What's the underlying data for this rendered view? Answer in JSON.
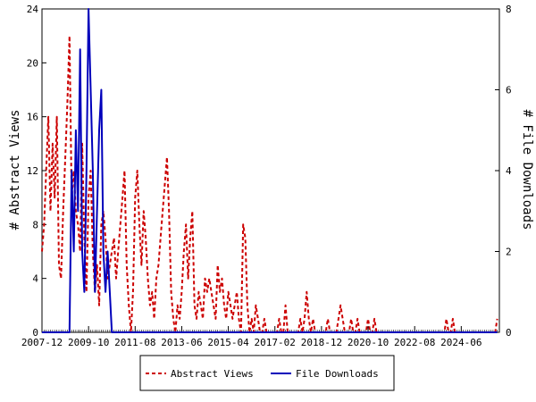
{
  "chart_data": {
    "type": "line",
    "title": "",
    "xlabel": "",
    "ylabel_left": "# Abstract Views",
    "ylabel_right": "# File Downloads",
    "x_range": [
      "2007-12",
      "2025-12"
    ],
    "x_tick_labels": [
      "2007-12",
      "2009-10",
      "2011-08",
      "2013-06",
      "2015-04",
      "2017-02",
      "2018-12",
      "2020-10",
      "2022-08",
      "2024-06"
    ],
    "ylim_left": [
      0,
      24
    ],
    "yticks_left": [
      0,
      4,
      8,
      12,
      16,
      20,
      24
    ],
    "ylim_right": [
      0,
      8
    ],
    "yticks_right": [
      0,
      2,
      4,
      6,
      8
    ],
    "grid": false,
    "legend_position": "bottom-center",
    "series": [
      {
        "name": "Abstract Views",
        "axis": "left",
        "color": "#cc0000",
        "style": "dashed",
        "points": [
          [
            "2007-12",
            6
          ],
          [
            "2008-01",
            8
          ],
          [
            "2008-02",
            12
          ],
          [
            "2008-03",
            16
          ],
          [
            "2008-04",
            9
          ],
          [
            "2008-05",
            14
          ],
          [
            "2008-06",
            10
          ],
          [
            "2008-07",
            16
          ],
          [
            "2008-08",
            5
          ],
          [
            "2008-09",
            4
          ],
          [
            "2008-10",
            9
          ],
          [
            "2008-11",
            13
          ],
          [
            "2008-12",
            17
          ],
          [
            "2009-01",
            22
          ],
          [
            "2009-02",
            10
          ],
          [
            "2009-03",
            12
          ],
          [
            "2009-04",
            9
          ],
          [
            "2009-05",
            8
          ],
          [
            "2009-06",
            6
          ],
          [
            "2009-07",
            14
          ],
          [
            "2009-08",
            7
          ],
          [
            "2009-09",
            3
          ],
          [
            "2009-10",
            10
          ],
          [
            "2009-11",
            12
          ],
          [
            "2009-12",
            6
          ],
          [
            "2010-01",
            3
          ],
          [
            "2010-02",
            5
          ],
          [
            "2010-03",
            2
          ],
          [
            "2010-04",
            8
          ],
          [
            "2010-05",
            9
          ],
          [
            "2010-06",
            7
          ],
          [
            "2010-07",
            4
          ],
          [
            "2010-08",
            5
          ],
          [
            "2010-09",
            6
          ],
          [
            "2010-10",
            7
          ],
          [
            "2010-11",
            4
          ],
          [
            "2010-12",
            6
          ],
          [
            "2011-01",
            8
          ],
          [
            "2011-02",
            10
          ],
          [
            "2011-03",
            12
          ],
          [
            "2011-04",
            5
          ],
          [
            "2011-05",
            2
          ],
          [
            "2011-06",
            0
          ],
          [
            "2011-07",
            3
          ],
          [
            "2011-08",
            10
          ],
          [
            "2011-09",
            12
          ],
          [
            "2011-10",
            8
          ],
          [
            "2011-11",
            5
          ],
          [
            "2011-12",
            9
          ],
          [
            "2012-01",
            7
          ],
          [
            "2012-02",
            4
          ],
          [
            "2012-03",
            2
          ],
          [
            "2012-04",
            3
          ],
          [
            "2012-05",
            1
          ],
          [
            "2012-06",
            4
          ],
          [
            "2012-07",
            5
          ],
          [
            "2012-08",
            7
          ],
          [
            "2012-09",
            9
          ],
          [
            "2012-10",
            11
          ],
          [
            "2012-11",
            13
          ],
          [
            "2012-12",
            9
          ],
          [
            "2013-01",
            3
          ],
          [
            "2013-02",
            1
          ],
          [
            "2013-03",
            0
          ],
          [
            "2013-04",
            2
          ],
          [
            "2013-05",
            1
          ],
          [
            "2013-06",
            3
          ],
          [
            "2013-07",
            6
          ],
          [
            "2013-08",
            8
          ],
          [
            "2013-09",
            4
          ],
          [
            "2013-10",
            7
          ],
          [
            "2013-11",
            9
          ],
          [
            "2013-12",
            2
          ],
          [
            "2014-01",
            1
          ],
          [
            "2014-02",
            3
          ],
          [
            "2014-03",
            2
          ],
          [
            "2014-04",
            1
          ],
          [
            "2014-05",
            4
          ],
          [
            "2014-06",
            3
          ],
          [
            "2014-07",
            4
          ],
          [
            "2014-08",
            3
          ],
          [
            "2014-09",
            2
          ],
          [
            "2014-10",
            1
          ],
          [
            "2014-11",
            5
          ],
          [
            "2014-12",
            3
          ],
          [
            "2015-01",
            4
          ],
          [
            "2015-02",
            2
          ],
          [
            "2015-03",
            1
          ],
          [
            "2015-04",
            3
          ],
          [
            "2015-05",
            2
          ],
          [
            "2015-06",
            1
          ],
          [
            "2015-07",
            2
          ],
          [
            "2015-08",
            3
          ],
          [
            "2015-09",
            1
          ],
          [
            "2015-10",
            0
          ],
          [
            "2015-11",
            8
          ],
          [
            "2015-12",
            7
          ],
          [
            "2016-01",
            2
          ],
          [
            "2016-02",
            0
          ],
          [
            "2016-03",
            1
          ],
          [
            "2016-04",
            0
          ],
          [
            "2016-05",
            2
          ],
          [
            "2016-06",
            1
          ],
          [
            "2016-07",
            0
          ],
          [
            "2016-08",
            0
          ],
          [
            "2016-09",
            1
          ],
          [
            "2016-10",
            0
          ],
          [
            "2016-11",
            0
          ],
          [
            "2016-12",
            0
          ],
          [
            "2017-01",
            0
          ],
          [
            "2017-02",
            0
          ],
          [
            "2017-03",
            0
          ],
          [
            "2017-04",
            1
          ],
          [
            "2017-05",
            0
          ],
          [
            "2017-06",
            0
          ],
          [
            "2017-07",
            2
          ],
          [
            "2017-08",
            0
          ],
          [
            "2017-09",
            0
          ],
          [
            "2017-10",
            0
          ],
          [
            "2017-11",
            0
          ],
          [
            "2017-12",
            0
          ],
          [
            "2018-01",
            0
          ],
          [
            "2018-02",
            1
          ],
          [
            "2018-03",
            0
          ],
          [
            "2018-04",
            1
          ],
          [
            "2018-05",
            3
          ],
          [
            "2018-06",
            1
          ],
          [
            "2018-07",
            0
          ],
          [
            "2018-08",
            1
          ],
          [
            "2018-09",
            0
          ],
          [
            "2018-10",
            0
          ],
          [
            "2018-11",
            0
          ],
          [
            "2018-12",
            0
          ],
          [
            "2019-01",
            0
          ],
          [
            "2019-02",
            0
          ],
          [
            "2019-03",
            1
          ],
          [
            "2019-04",
            0
          ],
          [
            "2019-05",
            0
          ],
          [
            "2019-06",
            0
          ],
          [
            "2019-07",
            0
          ],
          [
            "2019-08",
            1
          ],
          [
            "2019-09",
            2
          ],
          [
            "2019-10",
            1
          ],
          [
            "2019-11",
            0
          ],
          [
            "2019-12",
            0
          ],
          [
            "2020-01",
            0
          ],
          [
            "2020-02",
            1
          ],
          [
            "2020-03",
            0
          ],
          [
            "2020-04",
            0
          ],
          [
            "2020-05",
            1
          ],
          [
            "2020-06",
            0
          ],
          [
            "2020-07",
            0
          ],
          [
            "2020-08",
            0
          ],
          [
            "2020-09",
            0
          ],
          [
            "2020-10",
            1
          ],
          [
            "2020-11",
            0
          ],
          [
            "2020-12",
            0
          ],
          [
            "2021-01",
            1
          ],
          [
            "2021-02",
            0
          ],
          [
            "2021-03",
            0
          ],
          [
            "2021-04",
            0
          ],
          [
            "2021-05",
            0
          ],
          [
            "2021-06",
            0
          ],
          [
            "2021-07",
            0
          ],
          [
            "2021-08",
            0
          ],
          [
            "2021-09",
            0
          ],
          [
            "2021-10",
            0
          ],
          [
            "2021-11",
            0
          ],
          [
            "2021-12",
            0
          ],
          [
            "2022-01",
            0
          ],
          [
            "2022-02",
            0
          ],
          [
            "2022-03",
            0
          ],
          [
            "2022-04",
            0
          ],
          [
            "2022-05",
            0
          ],
          [
            "2022-06",
            0
          ],
          [
            "2022-07",
            0
          ],
          [
            "2022-08",
            0
          ],
          [
            "2022-09",
            0
          ],
          [
            "2022-10",
            0
          ],
          [
            "2022-11",
            0
          ],
          [
            "2022-12",
            0
          ],
          [
            "2023-01",
            0
          ],
          [
            "2023-02",
            0
          ],
          [
            "2023-03",
            0
          ],
          [
            "2023-04",
            0
          ],
          [
            "2023-05",
            0
          ],
          [
            "2023-06",
            0
          ],
          [
            "2023-07",
            0
          ],
          [
            "2023-08",
            0
          ],
          [
            "2023-09",
            0
          ],
          [
            "2023-10",
            0
          ],
          [
            "2023-11",
            1
          ],
          [
            "2023-12",
            0
          ],
          [
            "2024-01",
            0
          ],
          [
            "2024-02",
            1
          ],
          [
            "2024-03",
            0
          ],
          [
            "2024-04",
            0
          ],
          [
            "2024-05",
            0
          ],
          [
            "2024-06",
            0
          ],
          [
            "2024-07",
            0
          ],
          [
            "2024-08",
            0
          ],
          [
            "2024-09",
            0
          ],
          [
            "2024-10",
            0
          ],
          [
            "2024-11",
            0
          ],
          [
            "2024-12",
            0
          ],
          [
            "2025-01",
            0
          ],
          [
            "2025-02",
            0
          ],
          [
            "2025-03",
            0
          ],
          [
            "2025-04",
            0
          ],
          [
            "2025-05",
            0
          ],
          [
            "2025-06",
            0
          ],
          [
            "2025-07",
            0
          ],
          [
            "2025-08",
            0
          ],
          [
            "2025-09",
            0
          ],
          [
            "2025-10",
            0
          ],
          [
            "2025-11",
            1
          ]
        ]
      },
      {
        "name": "File Downloads",
        "axis": "right",
        "color": "#0000bb",
        "style": "solid",
        "points": [
          [
            "2007-12",
            0
          ],
          [
            "2008-06",
            0
          ],
          [
            "2009-01",
            0
          ],
          [
            "2009-02",
            4
          ],
          [
            "2009-03",
            2
          ],
          [
            "2009-04",
            5
          ],
          [
            "2009-05",
            3
          ],
          [
            "2009-06",
            7
          ],
          [
            "2009-07",
            2
          ],
          [
            "2009-08",
            1
          ],
          [
            "2009-09",
            4
          ],
          [
            "2009-10",
            8
          ],
          [
            "2009-11",
            6
          ],
          [
            "2009-12",
            4
          ],
          [
            "2010-01",
            1
          ],
          [
            "2010-02",
            3
          ],
          [
            "2010-03",
            5
          ],
          [
            "2010-04",
            6
          ],
          [
            "2010-05",
            2
          ],
          [
            "2010-06",
            1
          ],
          [
            "2010-07",
            2
          ],
          [
            "2010-08",
            1
          ],
          [
            "2010-09",
            0
          ],
          [
            "2010-10",
            0
          ],
          [
            "2011-06",
            0
          ],
          [
            "2013-06",
            0
          ],
          [
            "2015-04",
            0
          ],
          [
            "2017-02",
            0
          ],
          [
            "2018-12",
            0
          ],
          [
            "2020-10",
            0
          ],
          [
            "2022-08",
            0
          ],
          [
            "2024-06",
            0
          ],
          [
            "2025-11",
            0
          ]
        ]
      }
    ]
  }
}
